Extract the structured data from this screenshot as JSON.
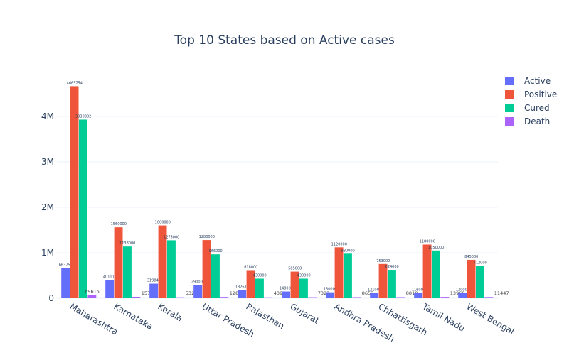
{
  "chart_data": {
    "type": "bar",
    "title": "Top 10 States based on Active cases",
    "xlabel": "",
    "ylabel": "",
    "categories": [
      "Maharashtra",
      "Karnataka",
      "Kerala",
      "Uttar Pradesh",
      "Rajasthan",
      "Gujarat",
      "Andhra Pradesh",
      "Chhattisgarh",
      "Tamil Nadu",
      "West Bengal"
    ],
    "series": [
      {
        "name": "Active",
        "color": "#636efa",
        "values": [
          663758,
          401112,
          319841,
          290000,
          182610,
          148000,
          130000,
          121000,
          116000,
          120000
        ]
      },
      {
        "name": "Positive",
        "color": "#ef553b",
        "values": [
          4665754,
          1560000,
          1600000,
          1280000,
          618000,
          585000,
          1120000,
          753000,
          1180000,
          845000
        ]
      },
      {
        "name": "Cured",
        "color": "#00cc96",
        "values": [
          3930302,
          1138000,
          1275000,
          966000,
          430000,
          430000,
          980000,
          624000,
          1050000,
          712000
        ]
      },
      {
        "name": "Death",
        "color": "#ab63fa",
        "values": [
          69615,
          15794,
          5326,
          12874,
          4396,
          7322,
          8653,
          8810,
          13960,
          11447
        ]
      }
    ],
    "ylim": [
      0,
      5000000
    ],
    "yticks": [
      0,
      1000000,
      2000000,
      3000000,
      4000000
    ],
    "ytick_labels": [
      "0",
      "1M",
      "2M",
      "3M",
      "4M"
    ],
    "grid": true,
    "legend": "top-right"
  }
}
